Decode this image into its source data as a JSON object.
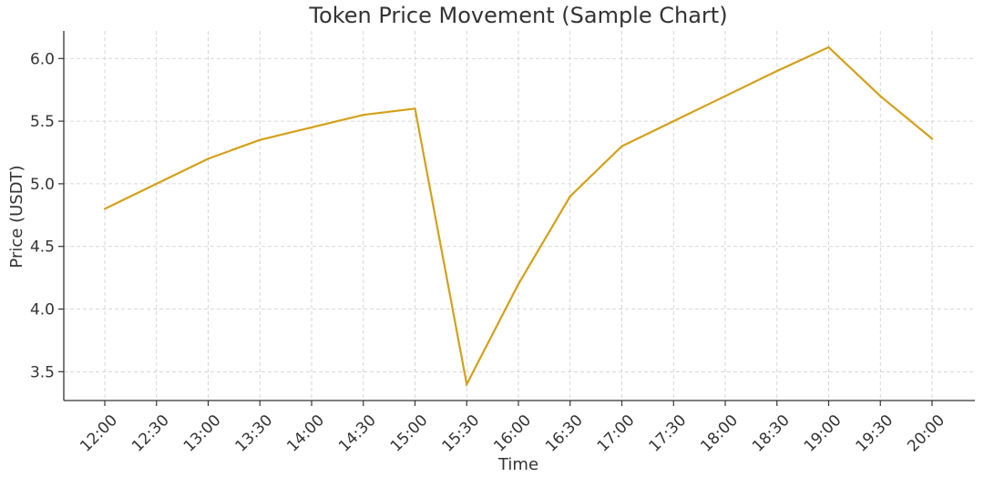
{
  "chart_data": {
    "type": "line",
    "title": "Token Price Movement (Sample Chart)",
    "xlabel": "Time",
    "ylabel": "Price (USDT)",
    "categories": [
      "12:00",
      "12:30",
      "13:00",
      "13:30",
      "14:00",
      "14:30",
      "15:00",
      "15:30",
      "16:00",
      "16:30",
      "17:00",
      "17:30",
      "18:00",
      "18:30",
      "19:00",
      "19:30",
      "20:00"
    ],
    "series": [
      {
        "values": [
          4.8,
          5.0,
          5.2,
          5.35,
          5.45,
          5.55,
          5.6,
          3.4,
          4.2,
          4.9,
          5.3,
          5.5,
          5.7,
          5.9,
          6.09,
          5.7,
          5.36
        ],
        "color": "#d4a017"
      }
    ],
    "ylim": [
      3.27,
      6.22
    ],
    "yticks": [
      3.5,
      4.0,
      4.5,
      5.0,
      5.5,
      6.0
    ],
    "ytick_labels": [
      "3.5",
      "4.0",
      "4.5",
      "5.0",
      "5.5",
      "6.0"
    ],
    "grid": true,
    "legend": "none"
  }
}
